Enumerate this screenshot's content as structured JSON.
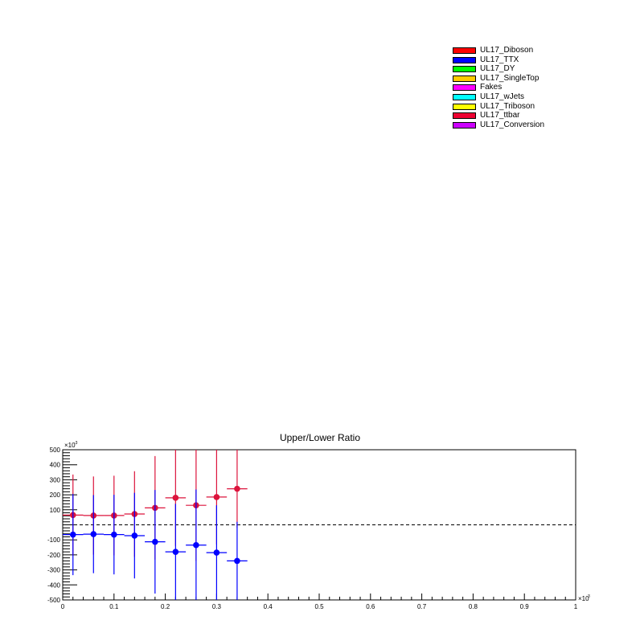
{
  "legend": {
    "entries": [
      {
        "label": "UL17_Diboson",
        "color": "#ff0000"
      },
      {
        "label": "UL17_TTX",
        "color": "#0000ff"
      },
      {
        "label": "UL17_DY",
        "color": "#00ff00"
      },
      {
        "label": "UL17_SingleTop",
        "color": "#ffcc00"
      },
      {
        "label": "Fakes",
        "color": "#ff00ff"
      },
      {
        "label": "UL17_wJets",
        "color": "#00ffff"
      },
      {
        "label": "UL17_Triboson",
        "color": "#ffff00"
      },
      {
        "label": "UL17_ttbar",
        "color": "#ee0033"
      },
      {
        "label": "UL17_Conversion",
        "color": "#cc00ff"
      }
    ]
  },
  "chart_data": {
    "type": "scatter",
    "title": "Upper/Lower Ratio",
    "xlabel": "",
    "ylabel": "",
    "x_exponent_label": "×10",
    "x_exponent": "3",
    "y_exponent_label": "×10",
    "y_exponent": "-3",
    "xlim": [
      0,
      1
    ],
    "ylim": [
      -500,
      500
    ],
    "xticks": [
      "0",
      "0.1",
      "0.2",
      "0.3",
      "0.4",
      "0.5",
      "0.6",
      "0.7",
      "0.8",
      "0.9",
      "1"
    ],
    "yticks": [
      "500",
      "400",
      "300",
      "200",
      "100",
      "-100",
      "-200",
      "-300",
      "-400",
      "-500"
    ],
    "yticks_values": [
      500,
      400,
      300,
      200,
      100,
      -100,
      -200,
      -300,
      -400,
      -500
    ],
    "reference_line_y": 0,
    "bin_width": 0.04,
    "series": [
      {
        "color": "#dc143c",
        "x": [
          0.02,
          0.06,
          0.1,
          0.14,
          0.18,
          0.22,
          0.26,
          0.3,
          0.34
        ],
        "y": [
          65,
          62,
          62,
          72,
          113,
          180,
          130,
          185,
          240
        ],
        "err_up": [
          270,
          260,
          265,
          285,
          345,
          320,
          370,
          315,
          260
        ],
        "err_down": [
          270,
          260,
          265,
          285,
          345,
          320,
          370,
          315,
          260
        ]
      },
      {
        "color": "#0000ff",
        "x": [
          0.02,
          0.06,
          0.1,
          0.14,
          0.18,
          0.22,
          0.26,
          0.3,
          0.34
        ],
        "y": [
          -65,
          -62,
          -65,
          -72,
          -113,
          -180,
          -135,
          -185,
          -240
        ],
        "err_up": [
          270,
          260,
          265,
          285,
          345,
          320,
          370,
          315,
          260
        ],
        "err_down": [
          270,
          260,
          265,
          285,
          345,
          320,
          370,
          315,
          260
        ]
      }
    ]
  }
}
